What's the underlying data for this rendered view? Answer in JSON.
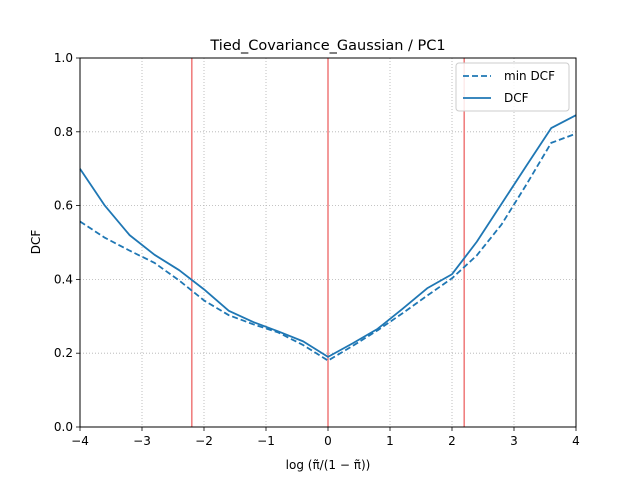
{
  "chart_data": {
    "type": "line",
    "title": "Tied_Covariance_Gaussian / PC1",
    "xlabel": "log (π̃/(1 − π̃))",
    "ylabel": "DCF",
    "xlim": [
      -4,
      4
    ],
    "ylim": [
      0,
      1
    ],
    "xticks": [
      -4,
      -3,
      -2,
      -1,
      0,
      1,
      2,
      3,
      4
    ],
    "xtick_labels": [
      "−4",
      "−3",
      "−2",
      "−1",
      "0",
      "1",
      "2",
      "3",
      "4"
    ],
    "yticks": [
      0.0,
      0.2,
      0.4,
      0.6,
      0.8,
      1.0
    ],
    "ytick_labels": [
      "0.0",
      "0.2",
      "0.4",
      "0.6",
      "0.8",
      "1.0"
    ],
    "grid": true,
    "legend_position": "top-right",
    "vertical_lines": [
      {
        "x": -2.197,
        "color": "#f08080"
      },
      {
        "x": 0.0,
        "color": "#f08080"
      },
      {
        "x": 2.197,
        "color": "#f08080"
      }
    ],
    "series": [
      {
        "name": "min DCF",
        "style": "dashed",
        "color": "#1f77b4",
        "x": [
          -4,
          -3.6,
          -3.2,
          -2.8,
          -2.4,
          -2.0,
          -1.6,
          -1.2,
          -0.8,
          -0.4,
          0.0,
          0.4,
          0.8,
          1.2,
          1.6,
          2.0,
          2.4,
          2.8,
          3.2,
          3.6,
          4.0
        ],
        "y": [
          0.557,
          0.513,
          0.478,
          0.445,
          0.397,
          0.343,
          0.303,
          0.278,
          0.256,
          0.222,
          0.18,
          0.22,
          0.262,
          0.308,
          0.356,
          0.403,
          0.465,
          0.549,
          0.657,
          0.77,
          0.795
        ]
      },
      {
        "name": "DCF",
        "style": "solid",
        "color": "#1f77b4",
        "x": [
          -4,
          -3.6,
          -3.2,
          -2.8,
          -2.4,
          -2.0,
          -1.6,
          -1.2,
          -0.8,
          -0.4,
          0.0,
          0.4,
          0.8,
          1.2,
          1.6,
          2.0,
          2.4,
          2.8,
          3.2,
          3.6,
          4.0
        ],
        "y": [
          0.7,
          0.6,
          0.52,
          0.467,
          0.425,
          0.373,
          0.315,
          0.284,
          0.259,
          0.232,
          0.19,
          0.227,
          0.266,
          0.32,
          0.376,
          0.414,
          0.502,
          0.605,
          0.708,
          0.81,
          0.845
        ]
      }
    ]
  }
}
